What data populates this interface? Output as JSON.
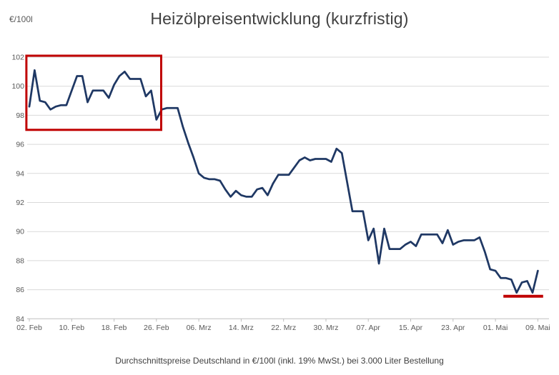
{
  "colors": {
    "line": "#1f3864",
    "annotation": "#c00000",
    "grid": "#d9d9d9",
    "axis": "#bfbfbf",
    "text": "#595959",
    "title_text": "#404040"
  },
  "chart_data": {
    "type": "line",
    "title": "Heizölpreisentwicklung (kurzfristig)",
    "ylabel": "€/100l",
    "xlabel": "",
    "caption": "Durchschnittspreise Deutschland in €/100l (inkl. 19% MwSt.) bei 3.000 Liter Bestellung",
    "ylim": [
      84,
      102
    ],
    "yticks": [
      84,
      86,
      88,
      90,
      92,
      94,
      96,
      98,
      100,
      102
    ],
    "grid": true,
    "legend": false,
    "x_axis": {
      "tick_labels": [
        "02. Feb",
        "10. Feb",
        "18. Feb",
        "26. Feb",
        "06. Mrz",
        "14. Mrz",
        "22. Mrz",
        "30. Mrz",
        "07. Apr",
        "15. Apr",
        "23. Apr",
        "01. Mai",
        "09. Mai"
      ],
      "tick_interval_days": 8
    },
    "dates": [
      "02.02.",
      "03.02.",
      "04.02.",
      "05.02.",
      "06.02.",
      "07.02.",
      "08.02.",
      "09.02.",
      "10.02.",
      "11.02.",
      "12.02.",
      "13.02.",
      "14.02.",
      "15.02.",
      "16.02.",
      "17.02.",
      "18.02.",
      "19.02.",
      "20.02.",
      "21.02.",
      "22.02.",
      "23.02.",
      "24.02.",
      "25.02.",
      "26.02.",
      "27.02.",
      "28.02.",
      "01.03.",
      "02.03.",
      "03.03.",
      "04.03.",
      "05.03.",
      "06.03.",
      "07.03.",
      "08.03.",
      "09.03.",
      "10.03.",
      "11.03.",
      "12.03.",
      "13.03.",
      "14.03.",
      "15.03.",
      "16.03.",
      "17.03.",
      "18.03.",
      "19.03.",
      "20.03.",
      "21.03.",
      "22.03.",
      "23.03.",
      "24.03.",
      "25.03.",
      "26.03.",
      "27.03.",
      "28.03.",
      "29.03.",
      "30.03.",
      "31.03.",
      "01.04.",
      "02.04.",
      "03.04.",
      "04.04.",
      "05.04.",
      "06.04.",
      "07.04.",
      "08.04.",
      "09.04.",
      "10.04.",
      "11.04.",
      "12.04.",
      "13.04.",
      "14.04.",
      "15.04.",
      "16.04.",
      "17.04.",
      "18.04.",
      "19.04.",
      "20.04.",
      "21.04.",
      "22.04.",
      "23.04.",
      "24.04.",
      "25.04.",
      "26.04.",
      "27.04.",
      "28.04.",
      "29.04.",
      "30.04.",
      "01.05.",
      "02.05.",
      "03.05.",
      "04.05.",
      "05.05.",
      "06.05.",
      "07.05.",
      "08.05.",
      "09.05."
    ],
    "values": [
      98.6,
      101.1,
      99.0,
      98.9,
      98.4,
      98.6,
      98.7,
      98.7,
      99.7,
      100.7,
      100.7,
      98.9,
      99.7,
      99.7,
      99.7,
      99.2,
      100.1,
      100.7,
      101.0,
      100.5,
      100.5,
      100.5,
      99.3,
      99.7,
      97.7,
      98.4,
      98.5,
      98.5,
      98.5,
      97.2,
      96.1,
      95.1,
      94.0,
      93.7,
      93.6,
      93.6,
      93.5,
      92.9,
      92.4,
      92.8,
      92.5,
      92.4,
      92.4,
      92.9,
      93.0,
      92.5,
      93.3,
      93.9,
      93.9,
      93.9,
      94.4,
      94.9,
      95.1,
      94.9,
      95.0,
      95.0,
      95.0,
      94.8,
      95.7,
      95.4,
      93.4,
      91.4,
      91.4,
      91.4,
      89.4,
      90.2,
      87.8,
      90.2,
      88.8,
      88.8,
      88.8,
      89.1,
      89.3,
      89.0,
      89.8,
      89.8,
      89.8,
      89.8,
      89.2,
      90.1,
      89.1,
      89.3,
      89.4,
      89.4,
      89.4,
      89.6,
      88.6,
      87.4,
      87.3,
      86.8,
      86.8,
      86.7,
      85.8,
      86.5,
      86.6,
      85.8,
      87.3
    ],
    "annotations": [
      {
        "type": "box",
        "name": "february-high-price-highlight",
        "day_from": -0.55,
        "day_to": 24.9,
        "value_from": 97.0,
        "value_to": 102.1,
        "color": "#c00000"
      },
      {
        "type": "underline",
        "name": "may-low-price-marker",
        "day_from": 89.5,
        "day_to": 97.0,
        "value": 85.55,
        "color": "#c00000"
      }
    ]
  }
}
